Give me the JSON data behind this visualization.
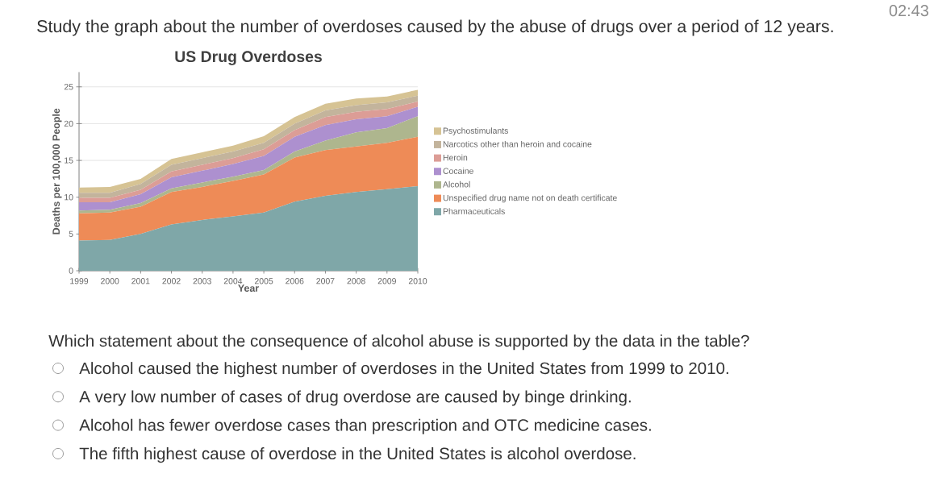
{
  "chart_data": {
    "type": "area",
    "title": "US Drug Overdoses",
    "xlabel": "Year",
    "ylabel": "Deaths per 100,000 People",
    "x": [
      1999,
      2000,
      2001,
      2002,
      2003,
      2004,
      2005,
      2006,
      2007,
      2008,
      2009,
      2010
    ],
    "xlim": [
      1999,
      2010
    ],
    "xticks": [
      1999,
      2000,
      2001,
      2002,
      2003,
      2004,
      2005,
      2006,
      2007,
      2008,
      2009,
      2010
    ],
    "ylim": [
      0,
      27
    ],
    "yticks": [
      0,
      5,
      10,
      15,
      20,
      25
    ],
    "stacked": true,
    "grid": "y",
    "legend": "right",
    "series": [
      {
        "name": "Pharmaceuticals",
        "color": "#7fa7a8",
        "values": [
          4.1,
          4.2,
          5.0,
          6.3,
          6.9,
          7.4,
          7.9,
          9.4,
          10.2,
          10.7,
          11.1,
          11.5
        ]
      },
      {
        "name": "Unspecified drug name not on death certificate",
        "color": "#ee8b57",
        "values": [
          3.7,
          3.7,
          3.7,
          4.4,
          4.5,
          4.8,
          5.2,
          6.0,
          6.2,
          6.2,
          6.3,
          6.7
        ]
      },
      {
        "name": "Alcohol",
        "color": "#aeb68e",
        "values": [
          0.4,
          0.4,
          0.5,
          0.5,
          0.6,
          0.6,
          0.6,
          0.8,
          1.3,
          1.9,
          2.0,
          2.8
        ]
      },
      {
        "name": "Cocaine",
        "color": "#ad90cf",
        "values": [
          1.1,
          1.0,
          1.2,
          1.5,
          1.6,
          1.7,
          1.9,
          2.0,
          2.1,
          1.8,
          1.6,
          1.3
        ]
      },
      {
        "name": "Heroin",
        "color": "#dc9d96",
        "values": [
          0.6,
          0.6,
          0.6,
          0.8,
          0.8,
          0.8,
          0.9,
          0.9,
          1.1,
          1.0,
          1.0,
          0.7
        ]
      },
      {
        "name": "Narcotics other than heroin and cocaine",
        "color": "#c3b49c",
        "values": [
          0.7,
          0.7,
          0.8,
          0.9,
          0.9,
          0.9,
          0.9,
          0.9,
          0.9,
          0.9,
          0.9,
          0.8
        ]
      },
      {
        "name": "Psychostimulants",
        "color": "#d6c394",
        "values": [
          0.7,
          0.8,
          0.7,
          0.8,
          0.8,
          0.8,
          0.9,
          0.9,
          0.9,
          0.9,
          0.8,
          0.8
        ]
      }
    ],
    "annotations": [
      "02:43",
      "Study the graph about the number of overdoses caused by the abuse of drugs over a period of 12 years.",
      "Which statement about the consequence of alcohol abuse is supported by the data in the table?",
      "Alcohol caused the highest number of overdoses in the United States from 1999 to 2010.",
      "A very low number of cases of drug overdose are caused by binge drinking.",
      "Alcohol has fewer overdose cases than prescription and OTC medicine cases.",
      "The fifth highest cause of overdose in the United States is alcohol overdose."
    ]
  }
}
